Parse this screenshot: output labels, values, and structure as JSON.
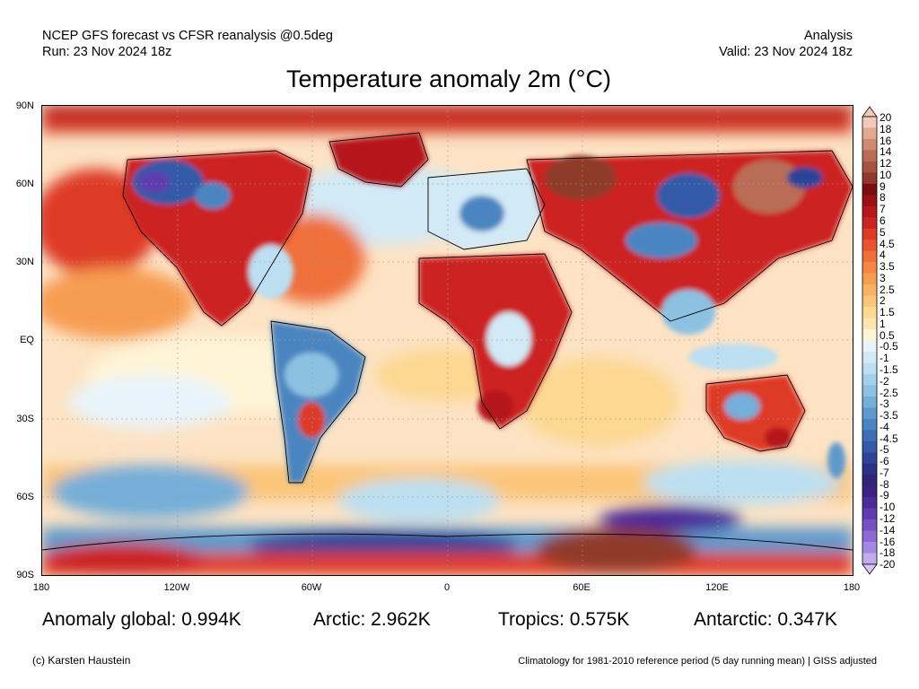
{
  "header": {
    "line1_left": "NCEP GFS forecast vs CFSR reanalysis @0.5deg",
    "line2_left": "Run: 23 Nov 2024 18z",
    "line1_right": "Analysis",
    "line2_right": "Valid: 23 Nov 2024 18z"
  },
  "title": "Temperature anomaly 2m (°C)",
  "lat_labels": [
    "90N",
    "60N",
    "30N",
    "EQ",
    "30S",
    "60S",
    "90S"
  ],
  "lon_labels": [
    "180",
    "120W",
    "60W",
    "0",
    "60E",
    "120E",
    "180"
  ],
  "colorbar": {
    "labels": [
      "20",
      "18",
      "16",
      "14",
      "12",
      "10",
      "9",
      "8",
      "7",
      "6",
      "5",
      "4.5",
      "4",
      "3.5",
      "3",
      "2.5",
      "2",
      "1.5",
      "1",
      "0.5",
      "-0.5",
      "-1",
      "-1.5",
      "-2",
      "-2.5",
      "-3",
      "-3.5",
      "-4",
      "-4.5",
      "-5",
      "-6",
      "-7",
      "-8",
      "-9",
      "-10",
      "-12",
      "-14",
      "-16",
      "-18",
      "-20"
    ],
    "colors": [
      "#f3c9b9",
      "#e2a98f",
      "#cf8b72",
      "#b96d57",
      "#a6533f",
      "#8f3a2c",
      "#7a0d12",
      "#9a1016",
      "#b5171b",
      "#cc2320",
      "#de3b27",
      "#e8552f",
      "#ef6f3a",
      "#f48745",
      "#f79d52",
      "#f9b263",
      "#fbc679",
      "#fcd892",
      "#fde6ae",
      "#fef4d6",
      "#e8f4fb",
      "#d2e9f6",
      "#bcdff1",
      "#a4d1ea",
      "#8cc1e2",
      "#75aed8",
      "#5f9acd",
      "#4b85c1",
      "#3c70b5",
      "#335aa8",
      "#2c4598",
      "#2a3286",
      "#302475",
      "#3b2282",
      "#4b2b98",
      "#5f3cae",
      "#7551c1",
      "#8c6ad2",
      "#a488e0",
      "#c2acee"
    ],
    "top_triangle_color": "#f3c9b9",
    "bottom_triangle_color": "#d6c9f6"
  },
  "stats": {
    "global": "Anomaly global: 0.994K",
    "arctic": "Arctic: 2.962K",
    "tropics": "Tropics: 0.575K",
    "antarctic": "Antarctic: 0.347K"
  },
  "footer": {
    "credit": "(c) Karsten Haustein",
    "note": "Climatology for 1981-2010 reference period (5 day running mean) | GISS adjusted"
  }
}
